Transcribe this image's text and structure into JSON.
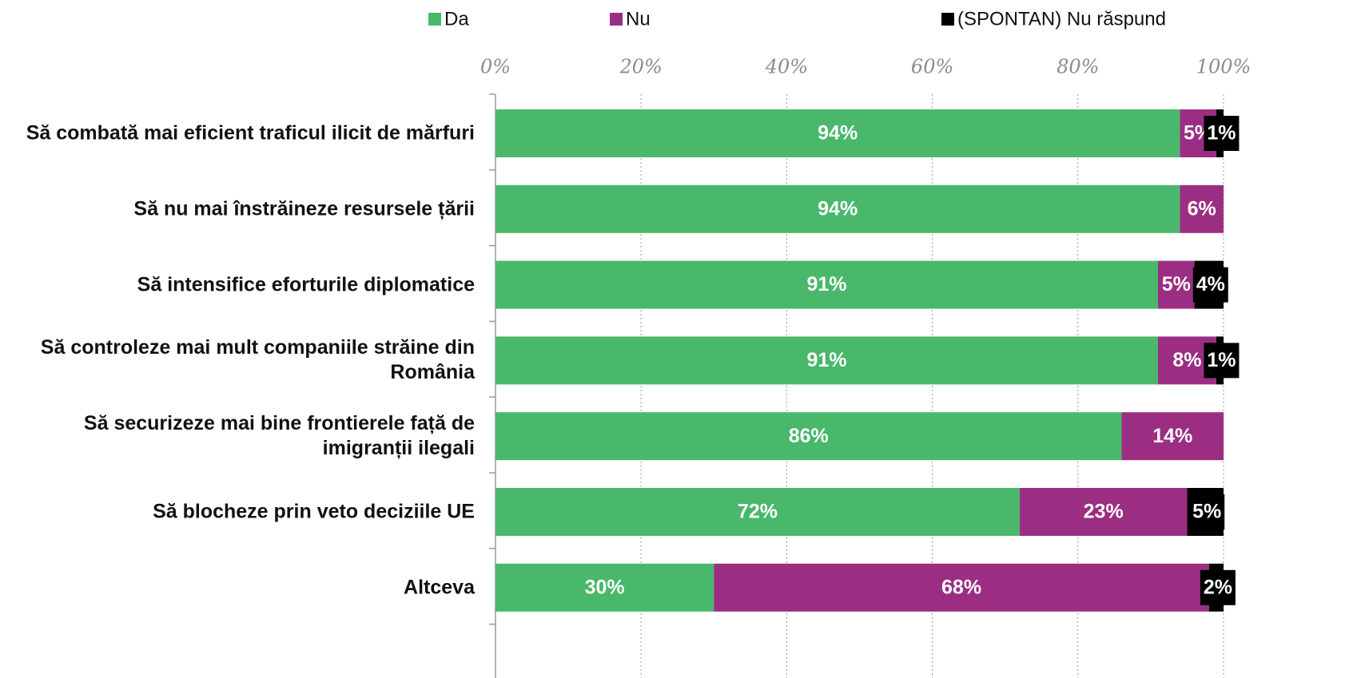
{
  "chart_data": {
    "type": "stacked-bar-horizontal",
    "categories": [
      "Să combată mai eficient traficul ilicit de mărfuri",
      "Să nu mai înstrăineze resursele țării",
      "Să intensifice eforturile diplomatice",
      "Să controleze mai mult companiile străine din România",
      "Să securizeze mai bine frontierele față de imigranții ilegali",
      "Să blocheze prin veto deciziile UE",
      "Altceva"
    ],
    "series": [
      {
        "name": "Da",
        "color": "#49b86b",
        "values": [
          94,
          94,
          91,
          91,
          86,
          72,
          30
        ],
        "value_labels": [
          "94%",
          "94%",
          "91%",
          "91%",
          "86%",
          "72%",
          "30%"
        ]
      },
      {
        "name": "Nu",
        "color": "#9b2e82",
        "values": [
          5,
          6,
          5,
          8,
          14,
          23,
          68
        ],
        "value_labels": [
          "5%",
          "6%",
          "5%",
          "8%",
          "14%",
          "23%",
          "68%"
        ]
      },
      {
        "name": "(SPONTAN) Nu răspund",
        "color": "#000000",
        "values": [
          1,
          null,
          4,
          1,
          null,
          5,
          2
        ],
        "value_labels": [
          "1%",
          null,
          "4%",
          "1%",
          null,
          "5%",
          "2%"
        ]
      }
    ],
    "xlim": [
      0,
      100
    ],
    "xticks": [
      {
        "value": 0,
        "label": "0%"
      },
      {
        "value": 20,
        "label": "20%"
      },
      {
        "value": 40,
        "label": "40%"
      },
      {
        "value": 60,
        "label": "60%"
      },
      {
        "value": 80,
        "label": "80%"
      },
      {
        "value": 100,
        "label": "100%"
      }
    ],
    "grid": true,
    "legend": "top"
  }
}
